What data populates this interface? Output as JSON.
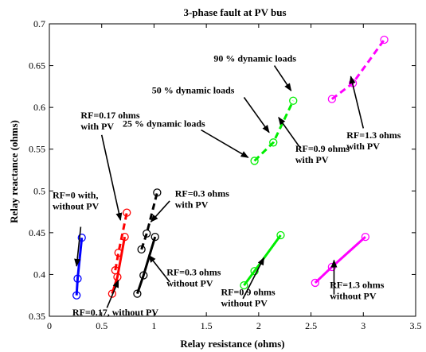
{
  "chart_data": {
    "type": "scatter",
    "title": "3-phase fault at PV bus",
    "xlabel": "Relay resistance (ohms)",
    "ylabel": "Relay reactance (ohms)",
    "xlim": [
      0,
      3.5
    ],
    "ylim": [
      0.35,
      0.7
    ],
    "x_ticks": [
      "0",
      "0.5",
      "1",
      "1.5",
      "2",
      "2.5",
      "3",
      "3.5"
    ],
    "y_ticks": [
      "0.35",
      "0.4",
      "0.45",
      "0.5",
      "0.55",
      "0.6",
      "0.65",
      "0.7"
    ],
    "grid": false,
    "series": [
      {
        "color": "#0000ff",
        "line": "solid",
        "points": [
          [
            0.26,
            0.375
          ],
          [
            0.27,
            0.395
          ],
          [
            0.31,
            0.444
          ]
        ]
      },
      {
        "color": "#ff0000",
        "line": "solid",
        "points": [
          [
            0.6,
            0.377
          ],
          [
            0.65,
            0.397
          ],
          [
            0.72,
            0.445
          ]
        ]
      },
      {
        "color": "#ff0000",
        "line": "dashed",
        "points": [
          [
            0.63,
            0.405
          ],
          [
            0.66,
            0.426
          ],
          [
            0.74,
            0.474
          ]
        ]
      },
      {
        "color": "#000000",
        "line": "solid",
        "points": [
          [
            0.84,
            0.377
          ],
          [
            0.9,
            0.399
          ],
          [
            1.01,
            0.445
          ]
        ]
      },
      {
        "color": "#000000",
        "line": "dashed",
        "points": [
          [
            0.88,
            0.43
          ],
          [
            0.93,
            0.449
          ],
          [
            1.03,
            0.498
          ]
        ]
      },
      {
        "color": "#00ee00",
        "line": "solid",
        "points": [
          [
            1.86,
            0.387
          ],
          [
            1.96,
            0.404
          ],
          [
            2.21,
            0.447
          ]
        ]
      },
      {
        "color": "#00ee00",
        "line": "dashed",
        "points": [
          [
            1.96,
            0.536
          ],
          [
            2.14,
            0.558
          ],
          [
            2.33,
            0.608
          ]
        ]
      },
      {
        "color": "#ff00ff",
        "line": "solid",
        "points": [
          [
            2.54,
            0.39
          ],
          [
            2.7,
            0.409
          ],
          [
            3.02,
            0.445
          ]
        ]
      },
      {
        "color": "#ff00ff",
        "line": "dashed",
        "points": [
          [
            2.7,
            0.61
          ],
          [
            2.9,
            0.629
          ],
          [
            3.2,
            0.681
          ]
        ]
      }
    ],
    "annotations": [
      {
        "lines": [
          "RF=0 with,",
          "without PV"
        ],
        "tx": 0.03,
        "ty": 0.491,
        "arrow": [
          [
            0.3,
            0.457
          ],
          [
            0.26,
            0.41
          ]
        ]
      },
      {
        "lines": [
          "RF=0.17 ohms",
          "with PV"
        ],
        "tx": 0.3,
        "ty": 0.587,
        "arrow": [
          [
            0.5,
            0.567
          ],
          [
            0.68,
            0.465
          ]
        ]
      },
      {
        "lines": [
          "RF=0.3 ohms",
          "with PV"
        ],
        "tx": 1.2,
        "ty": 0.493,
        "arrow": [
          [
            1.15,
            0.488
          ],
          [
            0.97,
            0.463
          ]
        ]
      },
      {
        "lines": [
          "RF=0.17, without PV"
        ],
        "tx": 0.22,
        "ty": 0.351,
        "arrow": [
          [
            0.55,
            0.36
          ],
          [
            0.66,
            0.393
          ]
        ]
      },
      {
        "lines": [
          "RF=0.3 ohms",
          "without PV"
        ],
        "tx": 1.12,
        "ty": 0.399,
        "arrow": [
          [
            1.15,
            0.391
          ],
          [
            0.95,
            0.423
          ]
        ]
      },
      {
        "lines": [
          "RF=0.9 ohms",
          "without PV"
        ],
        "tx": 1.64,
        "ty": 0.375,
        "arrow": [
          [
            1.85,
            0.371
          ],
          [
            2.05,
            0.42
          ]
        ]
      },
      {
        "lines": [
          "RF=1.3 ohms",
          "without PV"
        ],
        "tx": 2.68,
        "ty": 0.384,
        "arrow": [
          [
            2.72,
            0.376
          ],
          [
            2.72,
            0.417
          ]
        ]
      },
      {
        "lines": [
          "RF=0.9 ohms",
          "with PV"
        ],
        "tx": 2.35,
        "ty": 0.547,
        "arrow": [
          [
            2.4,
            0.551
          ],
          [
            2.19,
            0.588
          ]
        ]
      },
      {
        "lines": [
          "RF=1.3 ohms",
          "with PV"
        ],
        "tx": 2.84,
        "ty": 0.563,
        "arrow": [
          [
            3.0,
            0.575
          ],
          [
            2.88,
            0.637
          ]
        ]
      },
      {
        "lines": [
          "90 % dynamic loads"
        ],
        "tx": 1.57,
        "ty": 0.655,
        "arrow": [
          [
            2.15,
            0.65
          ],
          [
            2.31,
            0.62
          ]
        ]
      },
      {
        "lines": [
          "50 % dynamic loads"
        ],
        "tx": 0.98,
        "ty": 0.617,
        "arrow": [
          [
            1.86,
            0.612
          ],
          [
            2.1,
            0.57
          ]
        ]
      },
      {
        "lines": [
          "25 % dynamic loads"
        ],
        "tx": 0.7,
        "ty": 0.577,
        "arrow": [
          [
            1.45,
            0.573
          ],
          [
            1.9,
            0.54
          ]
        ]
      }
    ]
  }
}
